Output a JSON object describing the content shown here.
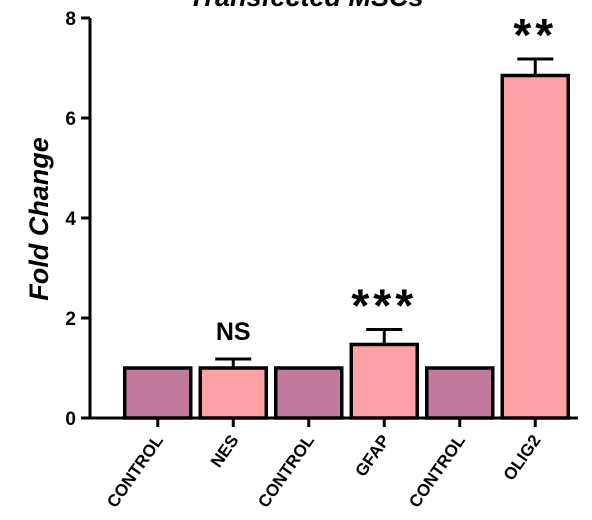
{
  "chart_data": {
    "type": "bar",
    "title": "Transfected MSCs",
    "xlabel": "",
    "ylabel": "Fold Change",
    "ylim": [
      0,
      8
    ],
    "yticks": [
      "0",
      "2",
      "4",
      "6",
      "8"
    ],
    "categories": [
      "CONTROL",
      "NES",
      "CONTROL",
      "GFAP",
      "CONTROL",
      "OLIG2"
    ],
    "values": [
      1.0,
      1.0,
      1.0,
      1.47,
      1.0,
      6.85
    ],
    "errors": [
      0,
      0.18,
      0,
      0.3,
      0,
      0.33
    ],
    "significance": [
      "",
      "NS",
      "",
      "***",
      "",
      "**"
    ],
    "grid": false,
    "legend": "none"
  },
  "colors": {
    "control_bar": "#c27b9f",
    "treated_bar": "#ffa0a4",
    "edge": "#000000"
  }
}
